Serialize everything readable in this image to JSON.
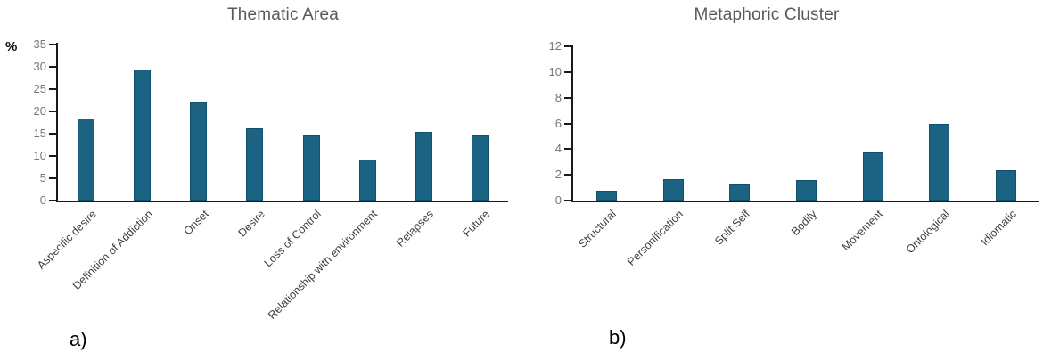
{
  "figure": {
    "background": "#ffffff",
    "bar_fill": "#1c6283",
    "bar_edge": "#124f6c",
    "axis_color": "#1a1a1a",
    "title_color": "#595959",
    "tick_label_color": "#767676",
    "category_label_color": "#3f3f3f",
    "panel_label_color": "#000000"
  },
  "chart_data": [
    {
      "type": "bar",
      "title": "Thematic Area",
      "ylabel": "%",
      "panel_label": "a)",
      "categories": [
        "Aspecific desire",
        "Definition of Addiction",
        "Onset",
        "Desire",
        "Loss of Control",
        "Relationship with environment",
        "Relapses",
        "Future"
      ],
      "values": [
        18.4,
        29.5,
        22.3,
        16.3,
        14.7,
        9.3,
        15.5,
        14.7
      ],
      "ylim": [
        0,
        35
      ],
      "yticks": [
        0,
        5,
        10,
        15,
        20,
        25,
        30,
        35
      ],
      "grid": false,
      "legend_position": "none"
    },
    {
      "type": "bar",
      "title": "Metaphoric Cluster",
      "ylabel": "",
      "panel_label": "b)",
      "categories": [
        "Structural",
        "Personification",
        "Split Self",
        "Bodily",
        "Movement",
        "Ontological",
        "Idiomatic"
      ],
      "values": [
        0.75,
        1.65,
        1.3,
        1.6,
        3.75,
        6.0,
        2.35
      ],
      "ylim": [
        0,
        12
      ],
      "yticks": [
        0,
        2,
        4,
        6,
        8,
        10,
        12
      ],
      "grid": false,
      "legend_position": "none"
    }
  ]
}
